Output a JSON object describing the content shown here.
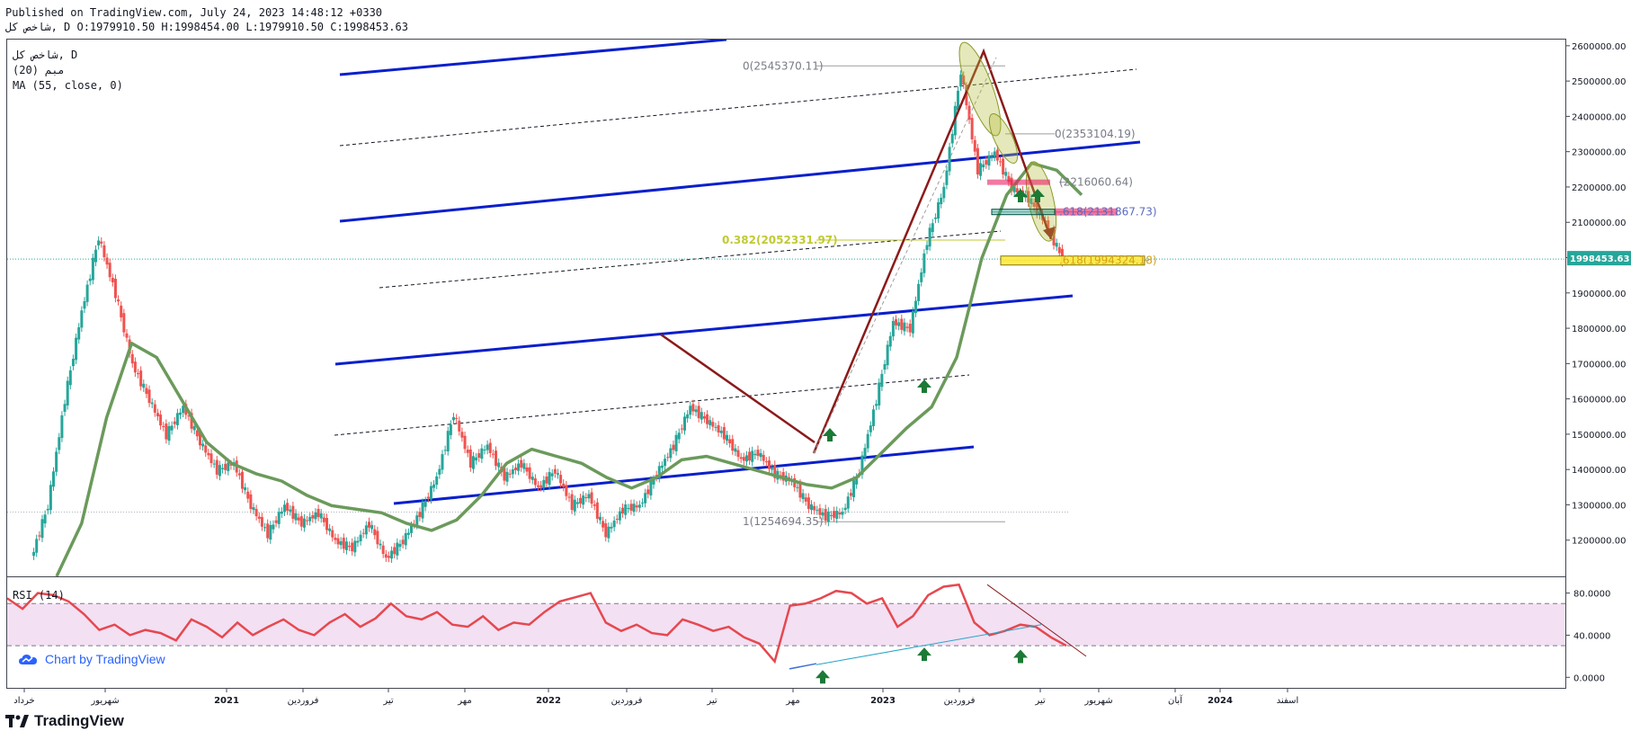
{
  "header": {
    "line1": "Published on TradingView.com, July 24, 2023 14:48:12 +0330",
    "line2": "ﺷﺎﺧﺺ ﻛﻞ, D O:1979910.50 H:1998454.00 L:1979910.50 C:1998453.63"
  },
  "legend": {
    "symbol": "ﺷﺎﺧﺺ ﻛﻞ, D",
    "indicator1": "ﻣﺒﻢ (20)",
    "indicator2": "MA (55, close, 0)"
  },
  "rsi_label": "RSI (14)",
  "badge": "Chart by TradingView",
  "footer": "TradingView",
  "colors": {
    "up": "#26a69a",
    "down": "#ef5350",
    "ma": "#6b9a5b",
    "channel": "#0a1fcc",
    "arrow": "#8b1a1a",
    "rsi": "#e6484f",
    "rsi_band": "#f3e0f3",
    "last_price": "#26a69a"
  },
  "chart_data": [
    {
      "type": "line",
      "name": "price",
      "ylim": [
        1100000,
        2620000
      ],
      "y_ticks": [
        "2600000.00",
        "2500000.00",
        "2400000.00",
        "2300000.00",
        "2200000.00",
        "2100000.00",
        "2000000.00",
        "1900000.00",
        "1800000.00",
        "1700000.00",
        "1600000.00",
        "1500000.00",
        "1400000.00",
        "1300000.00",
        "1200000.00"
      ],
      "x_labels": [
        "ﺧﺮﺩﺍﺩ",
        "ﺷﻬﺮﻳﻮﺭ",
        "2021",
        "ﻓﺮﻭﺭﺩﻳﻦ",
        "ﺗﻴﺮ",
        "ﻣﻬﺮ",
        "2022",
        "ﻓﺮﻭﺭﺩﻳﻦ",
        "ﺗﻴﺮ",
        "ﻣﻬﺮ",
        "2023",
        "ﻓﺮﻭﺭﺩﻳﻦ",
        "ﺗﻴﺮ",
        "ﺷﻬﺮﻳﻮﺭ",
        "ﺁﺑﺎﻥ",
        "2024",
        "ﺍﺳﻔﻨﺪ"
      ],
      "last_price_label": "1998453.63",
      "last_price": 1998453.63,
      "close_series": [
        1150000,
        1300000,
        1600000,
        1850000,
        2060000,
        1900000,
        1700000,
        1600000,
        1500000,
        1580000,
        1480000,
        1400000,
        1420000,
        1300000,
        1220000,
        1300000,
        1250000,
        1280000,
        1200000,
        1180000,
        1250000,
        1150000,
        1200000,
        1280000,
        1380000,
        1560000,
        1420000,
        1470000,
        1380000,
        1420000,
        1350000,
        1400000,
        1300000,
        1330000,
        1220000,
        1290000,
        1300000,
        1390000,
        1470000,
        1580000,
        1540000,
        1500000,
        1430000,
        1450000,
        1390000,
        1370000,
        1300000,
        1270000,
        1280000,
        1400000,
        1600000,
        1820000,
        1800000,
        2050000,
        2200000,
        2530000,
        2250000,
        2300000,
        2200000,
        2170000,
        2100000,
        1998453
      ],
      "ma_series": [
        1100000,
        1250000,
        1550000,
        1760000,
        1720000,
        1600000,
        1480000,
        1420000,
        1390000,
        1370000,
        1330000,
        1300000,
        1290000,
        1280000,
        1250000,
        1230000,
        1260000,
        1330000,
        1420000,
        1460000,
        1440000,
        1420000,
        1380000,
        1350000,
        1380000,
        1430000,
        1440000,
        1420000,
        1400000,
        1380000,
        1360000,
        1350000,
        1380000,
        1450000,
        1520000,
        1580000,
        1720000,
        2000000,
        2180000,
        2270000,
        2250000,
        2180000
      ],
      "fib_labels": [
        "0(2545370.11)",
        "0(2353104.19)",
        "(2216060.64)",
        ".618(2131867.73)",
        "0.382(2052331.97)",
        ".618(1994324.18)",
        "1(1254694.35)"
      ],
      "fib_levels": [
        2545370.11,
        2353104.19,
        2216060.64,
        2131867.73,
        2052331.97,
        1994324.18,
        1254694.35
      ]
    },
    {
      "type": "line",
      "name": "RSI",
      "ylim": [
        -10,
        95
      ],
      "y_ticks": [
        "80.0000",
        "40.0000",
        "0.0000"
      ],
      "band": [
        30,
        70
      ],
      "values": [
        75,
        65,
        80,
        78,
        72,
        60,
        45,
        50,
        40,
        45,
        42,
        35,
        55,
        48,
        38,
        52,
        40,
        48,
        55,
        45,
        40,
        52,
        60,
        48,
        56,
        70,
        58,
        55,
        62,
        50,
        48,
        58,
        45,
        52,
        50,
        62,
        72,
        76,
        80,
        52,
        44,
        50,
        42,
        40,
        55,
        50,
        44,
        48,
        38,
        32,
        15,
        68,
        70,
        75,
        82,
        80,
        70,
        75,
        48,
        58,
        78,
        86,
        88,
        52,
        40,
        44,
        50,
        48,
        38,
        30
      ]
    }
  ]
}
